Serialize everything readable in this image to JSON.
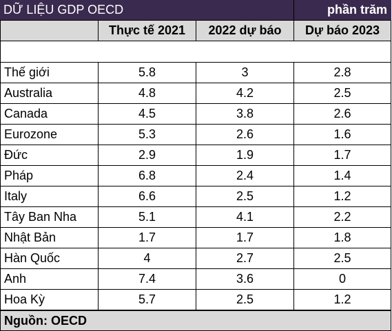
{
  "title": "DỮ LIỆU GDP OECD",
  "unit": "phần trăm",
  "columns": [
    "Thực tế 2021",
    "2022 dự báo",
    "Dự báo 2023"
  ],
  "rows": [
    {
      "country": "Thế giới",
      "v": [
        "5.8",
        "3",
        "2.8"
      ]
    },
    {
      "country": "Australia",
      "v": [
        "4.8",
        "4.2",
        "2.5"
      ]
    },
    {
      "country": "Canada",
      "v": [
        "4.5",
        "3.8",
        "2.6"
      ]
    },
    {
      "country": "Eurozone",
      "v": [
        "5.3",
        "2.6",
        "1.6"
      ]
    },
    {
      "country": "Đức",
      "v": [
        "2.9",
        "1.9",
        "1.7"
      ]
    },
    {
      "country": "Pháp",
      "v": [
        "6.8",
        "2.4",
        "1.4"
      ]
    },
    {
      "country": "Italy",
      "v": [
        "6.6",
        "2.5",
        "1.2"
      ]
    },
    {
      "country": "Tây Ban Nha",
      "v": [
        "5.1",
        "4.1",
        "2.2"
      ]
    },
    {
      "country": "Nhật Bản",
      "v": [
        "1.7",
        "1.7",
        "1.8"
      ]
    },
    {
      "country": "Hàn Quốc",
      "v": [
        "4",
        "2.7",
        "2.5"
      ]
    },
    {
      "country": "Anh",
      "v": [
        "7.4",
        "3.6",
        "0"
      ]
    },
    {
      "country": "Hoa Kỳ",
      "v": [
        "5.7",
        "2.5",
        "1.2"
      ]
    }
  ],
  "source": "Nguồn: OECD"
}
